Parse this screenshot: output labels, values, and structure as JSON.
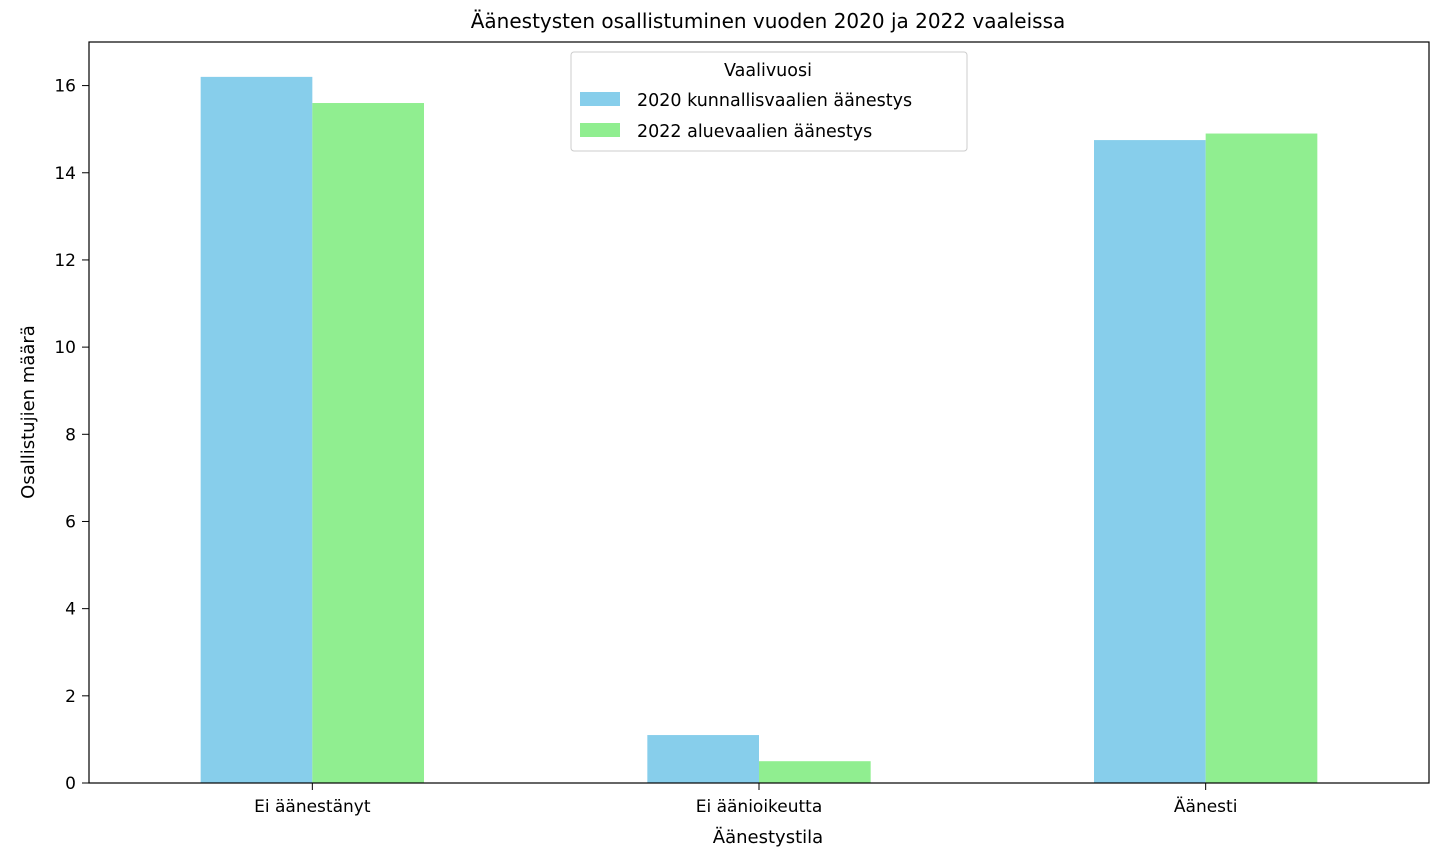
{
  "chart_data": {
    "type": "bar",
    "title": "Äänestysten osallistuminen vuoden 2020 ja 2022 vaaleissa",
    "xlabel": "Äänestystila",
    "ylabel": "Osallistujien määrä",
    "categories": [
      "Ei äänestänyt",
      "Ei äänioikeutta",
      "Äänesti"
    ],
    "series": [
      {
        "name": "2020 kunnallisvaalien äänestys",
        "color": "#87ceeb",
        "values": [
          16.2,
          1.1,
          14.75
        ]
      },
      {
        "name": "2022 aluevaalien äänestys",
        "color": "#90ee90",
        "values": [
          15.6,
          0.5,
          14.9
        ]
      }
    ],
    "ylim": [
      0,
      17
    ],
    "yticks": [
      0,
      2,
      4,
      6,
      8,
      10,
      12,
      14,
      16
    ],
    "grid": false,
    "legend": {
      "title": "Vaalivuosi",
      "position": "top-center"
    }
  }
}
